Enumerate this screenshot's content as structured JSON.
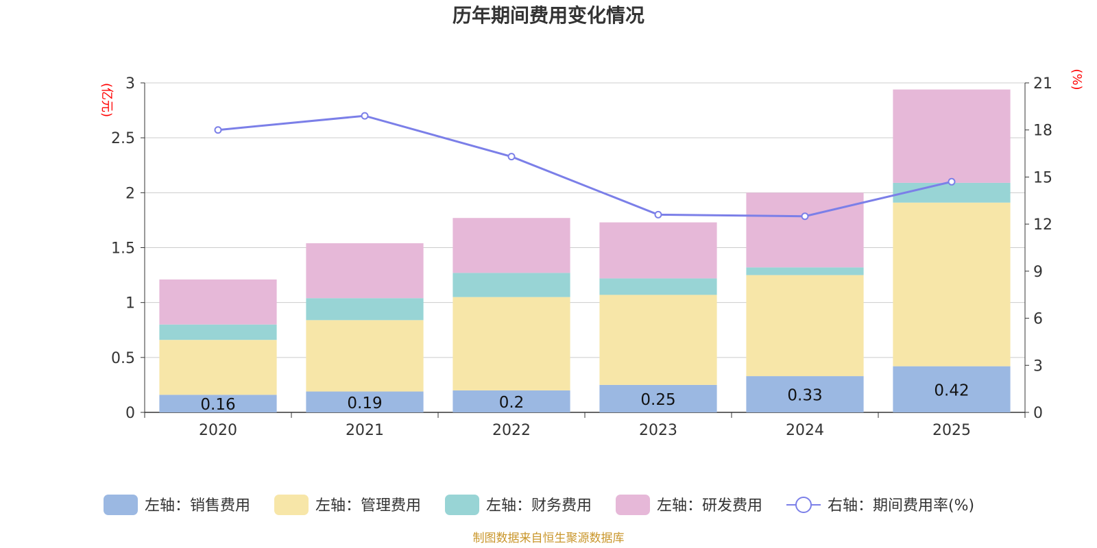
{
  "chart_data": {
    "type": "bar",
    "title": "历年期间费用变化情况",
    "categories": [
      "2020",
      "2021",
      "2022",
      "2023",
      "2024",
      "2025"
    ],
    "left_axis": {
      "unit": "(亿元)",
      "ylim": [
        0,
        3
      ],
      "ticks": [
        "0",
        "0.5",
        "1",
        "1.5",
        "2",
        "2.5",
        "3"
      ]
    },
    "right_axis": {
      "unit": "(%)",
      "ylim": [
        0,
        21
      ],
      "ticks": [
        "0",
        "3",
        "6",
        "9",
        "12",
        "15",
        "18",
        "21"
      ]
    },
    "series": [
      {
        "name": "左轴：销售费用",
        "type": "bar",
        "axis": "left",
        "color": "#9bb8e2",
        "values": [
          0.16,
          0.19,
          0.2,
          0.25,
          0.33,
          0.42
        ],
        "labels": [
          "0.16",
          "0.19",
          "0.2",
          "0.25",
          "0.33",
          "0.42"
        ]
      },
      {
        "name": "左轴：管理费用",
        "type": "bar",
        "axis": "left",
        "color": "#f7e6a8",
        "values": [
          0.5,
          0.65,
          0.85,
          0.82,
          0.92,
          1.49
        ]
      },
      {
        "name": "左轴：财务费用",
        "type": "bar",
        "axis": "left",
        "color": "#98d4d5",
        "values": [
          0.14,
          0.2,
          0.22,
          0.15,
          0.07,
          0.18
        ]
      },
      {
        "name": "左轴：研发费用",
        "type": "bar",
        "axis": "left",
        "color": "#e6b8d8",
        "values": [
          0.41,
          0.5,
          0.5,
          0.51,
          0.68,
          0.85
        ]
      },
      {
        "name": "右轴：期间费用率(%)",
        "type": "line",
        "axis": "right",
        "color": "#7b7fe8",
        "values": [
          18.0,
          18.9,
          16.3,
          12.6,
          12.5,
          14.7
        ]
      }
    ],
    "source": "制图数据来自恒生聚源数据库"
  }
}
